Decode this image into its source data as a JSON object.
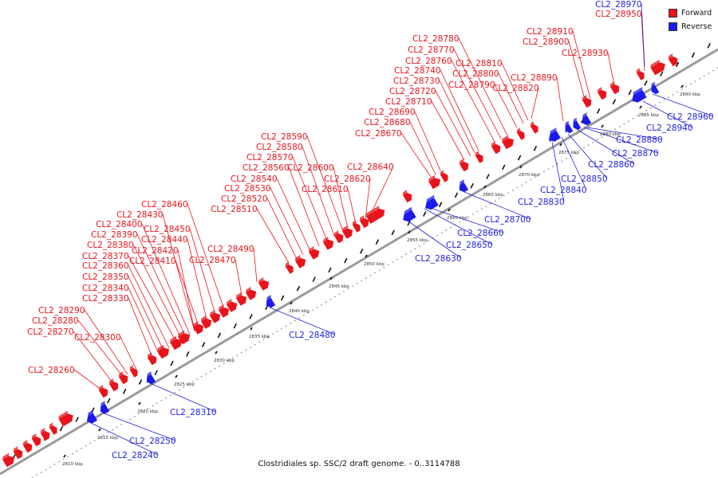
{
  "caption": "Clostridiales sp. SSC/2 draft genome. - 0..3114788",
  "legend": [
    {
      "label": "Forward",
      "color": "#e8141b"
    },
    {
      "label": "Reverse",
      "color": "#1a1aee"
    }
  ],
  "colors": {
    "forward": "#e8141b",
    "reverse": "#1a1aee",
    "backbone": "#888888"
  },
  "scale_ticks": [
    "2810 kbp",
    "2815 kbp",
    "2820 kbp",
    "2825 kbp",
    "2830 kbp",
    "2835 kbp",
    "2840 kbp",
    "2845 kbp",
    "2850 kbp",
    "2855 kbp",
    "2860 kbp",
    "2865 kbp",
    "2870 kbp",
    "2875 kbp",
    "2880 kbp",
    "2885 kbp",
    "2890 kbp"
  ],
  "forward_genes": [
    "CL2_28260",
    "CL2_28270",
    "CL2_28280",
    "CL2_28290",
    "CL2_28300",
    "CL2_28330",
    "CL2_28340",
    "CL2_28350",
    "CL2_28360",
    "CL2_28370",
    "CL2_28380",
    "CL2_28390",
    "CL2_28400",
    "CL2_28410",
    "CL2_28420",
    "CL2_28430",
    "CL2_28440",
    "CL2_28450",
    "CL2_28460",
    "CL2_28470",
    "CL2_28490",
    "CL2_28510",
    "CL2_28520",
    "CL2_28530",
    "CL2_28540",
    "CL2_28560",
    "CL2_28570",
    "CL2_28580",
    "CL2_28590",
    "CL2_28600",
    "CL2_28610",
    "CL2_28620",
    "CL2_28640",
    "CL2_28670",
    "CL2_28680",
    "CL2_28690",
    "CL2_28710",
    "CL2_28720",
    "CL2_28730",
    "CL2_28740",
    "CL2_28760",
    "CL2_28770",
    "CL2_28780",
    "CL2_28790",
    "CL2_28800",
    "CL2_28810",
    "CL2_28820",
    "CL2_28890",
    "CL2_28900",
    "CL2_28910",
    "CL2_28930",
    "CL2_28950"
  ],
  "reverse_genes": [
    "CL2_28240",
    "CL2_28250",
    "CL2_28310",
    "CL2_28480",
    "CL2_28630",
    "CL2_28650",
    "CL2_28660",
    "CL2_28700",
    "CL2_28830",
    "CL2_28840",
    "CL2_28850",
    "CL2_28860",
    "CL2_28870",
    "CL2_28880",
    "CL2_28940",
    "CL2_28960",
    "CL2_28970"
  ]
}
